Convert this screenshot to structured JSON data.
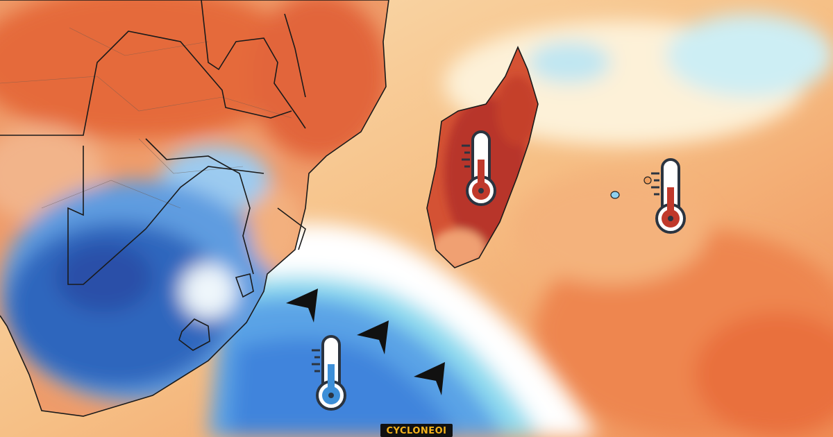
{
  "watermark": "CYCLONEOI"
}
